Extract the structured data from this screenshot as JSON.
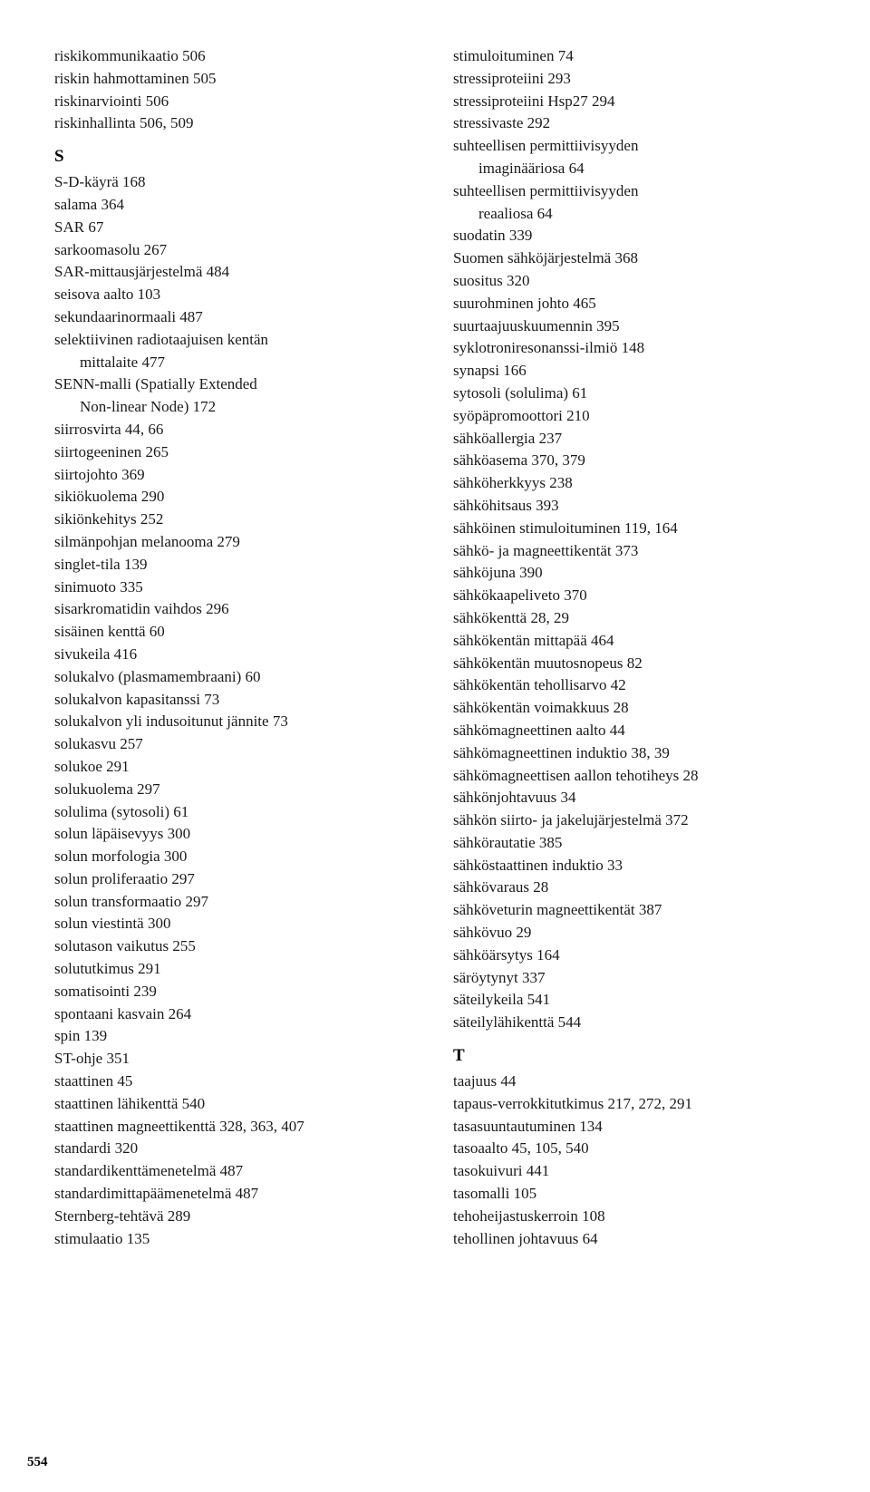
{
  "page_number": "554",
  "columns": [
    {
      "sections": [
        {
          "heading": null,
          "entries": [
            {
              "text": "riskikommunikaatio 506",
              "indent": false
            },
            {
              "text": "riskin hahmottaminen 505",
              "indent": false
            },
            {
              "text": "riskinarviointi 506",
              "indent": false
            },
            {
              "text": "riskinhallinta 506, 509",
              "indent": false
            }
          ]
        },
        {
          "heading": "S",
          "entries": [
            {
              "text": "S-D-käyrä 168",
              "indent": false
            },
            {
              "text": "salama 364",
              "indent": false
            },
            {
              "text": "SAR 67",
              "indent": false
            },
            {
              "text": "sarkoomasolu 267",
              "indent": false
            },
            {
              "text": "SAR-mittausjärjestelmä 484",
              "indent": false
            },
            {
              "text": "seisova aalto 103",
              "indent": false
            },
            {
              "text": "sekundaarinormaali 487",
              "indent": false
            },
            {
              "text": "selektiivinen radiotaajuisen kentän",
              "indent": false
            },
            {
              "text": "mittalaite 477",
              "indent": true
            },
            {
              "text": "SENN-malli (Spatially Extended",
              "indent": false
            },
            {
              "text": "Non-linear Node) 172",
              "indent": true
            },
            {
              "text": "siirrosvirta 44, 66",
              "indent": false
            },
            {
              "text": "siirtogeeninen 265",
              "indent": false
            },
            {
              "text": "siirtojohto 369",
              "indent": false
            },
            {
              "text": "sikiökuolema 290",
              "indent": false
            },
            {
              "text": "sikiönkehitys 252",
              "indent": false
            },
            {
              "text": "silmänpohjan melanooma 279",
              "indent": false
            },
            {
              "text": "singlet-tila 139",
              "indent": false
            },
            {
              "text": "sinimuoto 335",
              "indent": false
            },
            {
              "text": "sisarkromatidin vaihdos 296",
              "indent": false
            },
            {
              "text": "sisäinen kenttä 60",
              "indent": false
            },
            {
              "text": "sivukeila 416",
              "indent": false
            },
            {
              "text": "solukalvo (plasmamembraani) 60",
              "indent": false
            },
            {
              "text": "solukalvon kapasitanssi 73",
              "indent": false
            },
            {
              "text": "solukalvon yli indusoitunut jännite 73",
              "indent": false
            },
            {
              "text": "solukasvu 257",
              "indent": false
            },
            {
              "text": "solukoe 291",
              "indent": false
            },
            {
              "text": "solukuolema 297",
              "indent": false
            },
            {
              "text": "solulima (sytosoli) 61",
              "indent": false
            },
            {
              "text": "solun läpäisevyys 300",
              "indent": false
            },
            {
              "text": "solun morfologia 300",
              "indent": false
            },
            {
              "text": "solun proliferaatio 297",
              "indent": false
            },
            {
              "text": "solun transformaatio 297",
              "indent": false
            },
            {
              "text": "solun viestintä 300",
              "indent": false
            },
            {
              "text": "solutason vaikutus 255",
              "indent": false
            },
            {
              "text": "solututkimus 291",
              "indent": false
            },
            {
              "text": "somatisointi 239",
              "indent": false
            },
            {
              "text": "spontaani kasvain 264",
              "indent": false
            },
            {
              "text": "spin 139",
              "indent": false
            },
            {
              "text": "ST-ohje 351",
              "indent": false
            },
            {
              "text": "staattinen 45",
              "indent": false
            },
            {
              "text": "staattinen lähikenttä 540",
              "indent": false
            },
            {
              "text": "staattinen magneettikenttä 328, 363, 407",
              "indent": false
            },
            {
              "text": "standardi 320",
              "indent": false
            },
            {
              "text": "standardikenttämenetelmä 487",
              "indent": false
            },
            {
              "text": "standardimittapäämenetelmä 487",
              "indent": false
            },
            {
              "text": "Sternberg-tehtävä 289",
              "indent": false
            },
            {
              "text": "stimulaatio 135",
              "indent": false
            }
          ]
        }
      ]
    },
    {
      "sections": [
        {
          "heading": null,
          "entries": [
            {
              "text": "stimuloituminen 74",
              "indent": false
            },
            {
              "text": "stressiproteiini 293",
              "indent": false
            },
            {
              "text": "stressiproteiini Hsp27 294",
              "indent": false
            },
            {
              "text": "stressivaste 292",
              "indent": false
            },
            {
              "text": "suhteellisen permittiivisyyden",
              "indent": false
            },
            {
              "text": "imaginääriosa 64",
              "indent": true
            },
            {
              "text": "suhteellisen permittiivisyyden",
              "indent": false
            },
            {
              "text": "reaaliosa 64",
              "indent": true
            },
            {
              "text": "suodatin 339",
              "indent": false
            },
            {
              "text": "Suomen sähköjärjestelmä 368",
              "indent": false
            },
            {
              "text": "suositus 320",
              "indent": false
            },
            {
              "text": "suurohminen johto 465",
              "indent": false
            },
            {
              "text": "suurtaajuuskuumennin 395",
              "indent": false
            },
            {
              "text": "syklotroniresonanssi-ilmiö 148",
              "indent": false
            },
            {
              "text": "synapsi 166",
              "indent": false
            },
            {
              "text": "sytosoli (solulima) 61",
              "indent": false
            },
            {
              "text": "syöpäpromoottori 210",
              "indent": false
            },
            {
              "text": "sähköallergia 237",
              "indent": false
            },
            {
              "text": "sähköasema 370, 379",
              "indent": false
            },
            {
              "text": "sähköherkkyys 238",
              "indent": false
            },
            {
              "text": "sähköhitsaus 393",
              "indent": false
            },
            {
              "text": "sähköinen stimuloituminen 119, 164",
              "indent": false
            },
            {
              "text": "sähkö- ja magneettikentät 373",
              "indent": false
            },
            {
              "text": "sähköjuna 390",
              "indent": false
            },
            {
              "text": "sähkökaapeliveto 370",
              "indent": false
            },
            {
              "text": "sähkökenttä 28, 29",
              "indent": false
            },
            {
              "text": "sähkökentän mittapää 464",
              "indent": false
            },
            {
              "text": "sähkökentän muutosnopeus 82",
              "indent": false
            },
            {
              "text": "sähkökentän tehollisarvo 42",
              "indent": false
            },
            {
              "text": "sähkökentän voimakkuus 28",
              "indent": false
            },
            {
              "text": "sähkömagneettinen aalto 44",
              "indent": false
            },
            {
              "text": "sähkömagneettinen induktio 38, 39",
              "indent": false
            },
            {
              "text": "sähkömagneettisen aallon tehotiheys 28",
              "indent": false
            },
            {
              "text": "sähkönjohtavuus 34",
              "indent": false
            },
            {
              "text": "sähkön siirto- ja jakelujärjestelmä 372",
              "indent": false
            },
            {
              "text": "sähkörautatie 385",
              "indent": false
            },
            {
              "text": "sähköstaattinen induktio 33",
              "indent": false
            },
            {
              "text": "sähkövaraus 28",
              "indent": false
            },
            {
              "text": "sähköveturin magneettikentät 387",
              "indent": false
            },
            {
              "text": "sähkövuo 29",
              "indent": false
            },
            {
              "text": "sähköärsytys 164",
              "indent": false
            },
            {
              "text": "säröytynyt 337",
              "indent": false
            },
            {
              "text": "säteilykeila 541",
              "indent": false
            },
            {
              "text": "säteilylähikenttä 544",
              "indent": false
            }
          ]
        },
        {
          "heading": "T",
          "entries": [
            {
              "text": "taajuus 44",
              "indent": false
            },
            {
              "text": "tapaus-verrokkitutkimus 217, 272, 291",
              "indent": false
            },
            {
              "text": "tasasuuntautuminen 134",
              "indent": false
            },
            {
              "text": "tasoaalto 45, 105, 540",
              "indent": false
            },
            {
              "text": "tasokuivuri 441",
              "indent": false
            },
            {
              "text": "tasomalli 105",
              "indent": false
            },
            {
              "text": "tehoheijastuskerroin 108",
              "indent": false
            },
            {
              "text": "tehollinen johtavuus 64",
              "indent": false
            }
          ]
        }
      ]
    }
  ]
}
